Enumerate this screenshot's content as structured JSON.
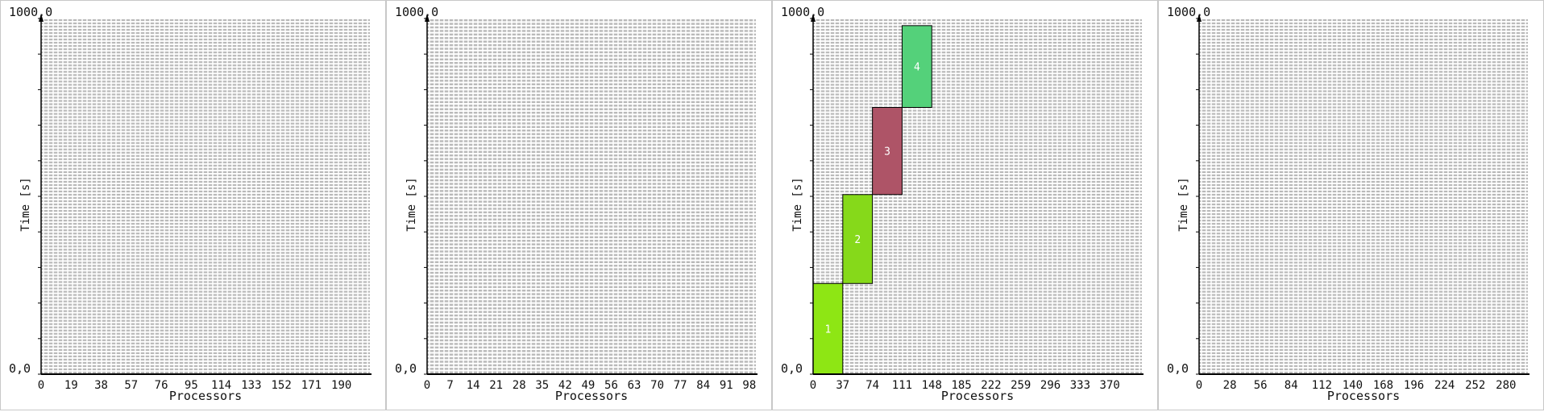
{
  "colors": {
    "row_fill": "#b9b9b9",
    "axis": "#000000"
  },
  "chart_data": [
    {
      "type": "bar",
      "ylabel": "Time [s]",
      "xlabel": "Processors",
      "y_top_label": "1000,0",
      "y_bottom_label": "0,0",
      "ylim": [
        0,
        1000
      ],
      "xlim": [
        0,
        208
      ],
      "xticks": [
        "0",
        "19",
        "38",
        "57",
        "76",
        "95",
        "114",
        "133",
        "152",
        "171",
        "190"
      ],
      "xtick_values": [
        0,
        19,
        38,
        57,
        76,
        95,
        114,
        133,
        152,
        171,
        190
      ],
      "processor_rows": 208,
      "jobs": []
    },
    {
      "type": "bar",
      "ylabel": "Time [s]",
      "xlabel": "Processors",
      "y_top_label": "1000,0",
      "y_bottom_label": "0,0",
      "ylim": [
        0,
        1000
      ],
      "xlim": [
        0,
        100
      ],
      "xticks": [
        "0",
        "7",
        "14",
        "21",
        "28",
        "35",
        "42",
        "49",
        "56",
        "63",
        "70",
        "77",
        "84",
        "91",
        "98"
      ],
      "xtick_values": [
        0,
        7,
        14,
        21,
        28,
        35,
        42,
        49,
        56,
        63,
        70,
        77,
        84,
        91,
        98
      ],
      "processor_rows": 100,
      "jobs": []
    },
    {
      "type": "bar",
      "ylabel": "Time [s]",
      "xlabel": "Processors",
      "y_top_label": "1000,0",
      "y_bottom_label": "0,0",
      "ylim": [
        0,
        1000
      ],
      "xlim": [
        0,
        410
      ],
      "xticks": [
        "0",
        "37",
        "74",
        "111",
        "148",
        "185",
        "222",
        "259",
        "296",
        "333",
        "370"
      ],
      "xtick_values": [
        0,
        37,
        74,
        111,
        148,
        185,
        222,
        259,
        296,
        333,
        370
      ],
      "processor_rows": 410,
      "jobs": [
        {
          "id": "1",
          "x0": 0,
          "x1": 37,
          "t0": 0,
          "t1": 255,
          "color": "#8ee614",
          "label_color": "#ffffff"
        },
        {
          "id": "2",
          "x0": 37,
          "x1": 74,
          "t0": 255,
          "t1": 505,
          "color": "#86d91a",
          "label_color": "#ffffff"
        },
        {
          "id": "3",
          "x0": 74,
          "x1": 111,
          "t0": 505,
          "t1": 750,
          "color": "#ae5467",
          "label_color": "#ffffff"
        },
        {
          "id": "4",
          "x0": 111,
          "x1": 148,
          "t0": 750,
          "t1": 980,
          "color": "#54d17a",
          "label_color": "#ffffff"
        }
      ]
    },
    {
      "type": "bar",
      "ylabel": "Time [s]",
      "xlabel": "Processors",
      "y_top_label": "1000,0",
      "y_bottom_label": "0,0",
      "ylim": [
        0,
        1000
      ],
      "xlim": [
        0,
        300
      ],
      "xticks": [
        "0",
        "28",
        "56",
        "84",
        "112",
        "140",
        "168",
        "196",
        "224",
        "252",
        "280"
      ],
      "xtick_values": [
        0,
        28,
        56,
        84,
        112,
        140,
        168,
        196,
        224,
        252,
        280
      ],
      "processor_rows": 300,
      "jobs": []
    }
  ]
}
